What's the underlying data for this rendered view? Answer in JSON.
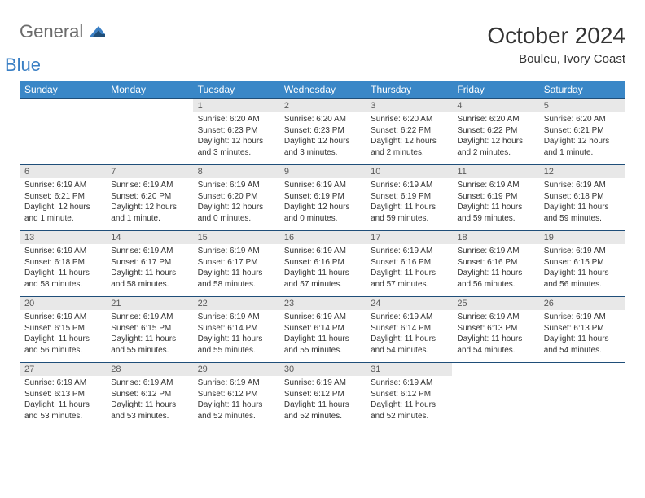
{
  "logo": {
    "word1": "General",
    "word2": "Blue"
  },
  "title": "October 2024",
  "location": "Bouleu, Ivory Coast",
  "colors": {
    "header_bg": "#3a87c7",
    "header_text": "#ffffff",
    "daynum_bg": "#e8e8e8",
    "border": "#1f4e79",
    "logo_gray": "#6b6b6b",
    "logo_blue": "#3a7fc4"
  },
  "day_names": [
    "Sunday",
    "Monday",
    "Tuesday",
    "Wednesday",
    "Thursday",
    "Friday",
    "Saturday"
  ],
  "weeks": [
    {
      "nums": [
        "",
        "",
        "1",
        "2",
        "3",
        "4",
        "5"
      ],
      "cells": [
        null,
        null,
        {
          "sunrise": "6:20 AM",
          "sunset": "6:23 PM",
          "daylight": "12 hours and 3 minutes."
        },
        {
          "sunrise": "6:20 AM",
          "sunset": "6:23 PM",
          "daylight": "12 hours and 3 minutes."
        },
        {
          "sunrise": "6:20 AM",
          "sunset": "6:22 PM",
          "daylight": "12 hours and 2 minutes."
        },
        {
          "sunrise": "6:20 AM",
          "sunset": "6:22 PM",
          "daylight": "12 hours and 2 minutes."
        },
        {
          "sunrise": "6:20 AM",
          "sunset": "6:21 PM",
          "daylight": "12 hours and 1 minute."
        }
      ]
    },
    {
      "nums": [
        "6",
        "7",
        "8",
        "9",
        "10",
        "11",
        "12"
      ],
      "cells": [
        {
          "sunrise": "6:19 AM",
          "sunset": "6:21 PM",
          "daylight": "12 hours and 1 minute."
        },
        {
          "sunrise": "6:19 AM",
          "sunset": "6:20 PM",
          "daylight": "12 hours and 1 minute."
        },
        {
          "sunrise": "6:19 AM",
          "sunset": "6:20 PM",
          "daylight": "12 hours and 0 minutes."
        },
        {
          "sunrise": "6:19 AM",
          "sunset": "6:19 PM",
          "daylight": "12 hours and 0 minutes."
        },
        {
          "sunrise": "6:19 AM",
          "sunset": "6:19 PM",
          "daylight": "11 hours and 59 minutes."
        },
        {
          "sunrise": "6:19 AM",
          "sunset": "6:19 PM",
          "daylight": "11 hours and 59 minutes."
        },
        {
          "sunrise": "6:19 AM",
          "sunset": "6:18 PM",
          "daylight": "11 hours and 59 minutes."
        }
      ]
    },
    {
      "nums": [
        "13",
        "14",
        "15",
        "16",
        "17",
        "18",
        "19"
      ],
      "cells": [
        {
          "sunrise": "6:19 AM",
          "sunset": "6:18 PM",
          "daylight": "11 hours and 58 minutes."
        },
        {
          "sunrise": "6:19 AM",
          "sunset": "6:17 PM",
          "daylight": "11 hours and 58 minutes."
        },
        {
          "sunrise": "6:19 AM",
          "sunset": "6:17 PM",
          "daylight": "11 hours and 58 minutes."
        },
        {
          "sunrise": "6:19 AM",
          "sunset": "6:16 PM",
          "daylight": "11 hours and 57 minutes."
        },
        {
          "sunrise": "6:19 AM",
          "sunset": "6:16 PM",
          "daylight": "11 hours and 57 minutes."
        },
        {
          "sunrise": "6:19 AM",
          "sunset": "6:16 PM",
          "daylight": "11 hours and 56 minutes."
        },
        {
          "sunrise": "6:19 AM",
          "sunset": "6:15 PM",
          "daylight": "11 hours and 56 minutes."
        }
      ]
    },
    {
      "nums": [
        "20",
        "21",
        "22",
        "23",
        "24",
        "25",
        "26"
      ],
      "cells": [
        {
          "sunrise": "6:19 AM",
          "sunset": "6:15 PM",
          "daylight": "11 hours and 56 minutes."
        },
        {
          "sunrise": "6:19 AM",
          "sunset": "6:15 PM",
          "daylight": "11 hours and 55 minutes."
        },
        {
          "sunrise": "6:19 AM",
          "sunset": "6:14 PM",
          "daylight": "11 hours and 55 minutes."
        },
        {
          "sunrise": "6:19 AM",
          "sunset": "6:14 PM",
          "daylight": "11 hours and 55 minutes."
        },
        {
          "sunrise": "6:19 AM",
          "sunset": "6:14 PM",
          "daylight": "11 hours and 54 minutes."
        },
        {
          "sunrise": "6:19 AM",
          "sunset": "6:13 PM",
          "daylight": "11 hours and 54 minutes."
        },
        {
          "sunrise": "6:19 AM",
          "sunset": "6:13 PM",
          "daylight": "11 hours and 54 minutes."
        }
      ]
    },
    {
      "nums": [
        "27",
        "28",
        "29",
        "30",
        "31",
        "",
        ""
      ],
      "cells": [
        {
          "sunrise": "6:19 AM",
          "sunset": "6:13 PM",
          "daylight": "11 hours and 53 minutes."
        },
        {
          "sunrise": "6:19 AM",
          "sunset": "6:12 PM",
          "daylight": "11 hours and 53 minutes."
        },
        {
          "sunrise": "6:19 AM",
          "sunset": "6:12 PM",
          "daylight": "11 hours and 52 minutes."
        },
        {
          "sunrise": "6:19 AM",
          "sunset": "6:12 PM",
          "daylight": "11 hours and 52 minutes."
        },
        {
          "sunrise": "6:19 AM",
          "sunset": "6:12 PM",
          "daylight": "11 hours and 52 minutes."
        },
        null,
        null
      ]
    }
  ]
}
